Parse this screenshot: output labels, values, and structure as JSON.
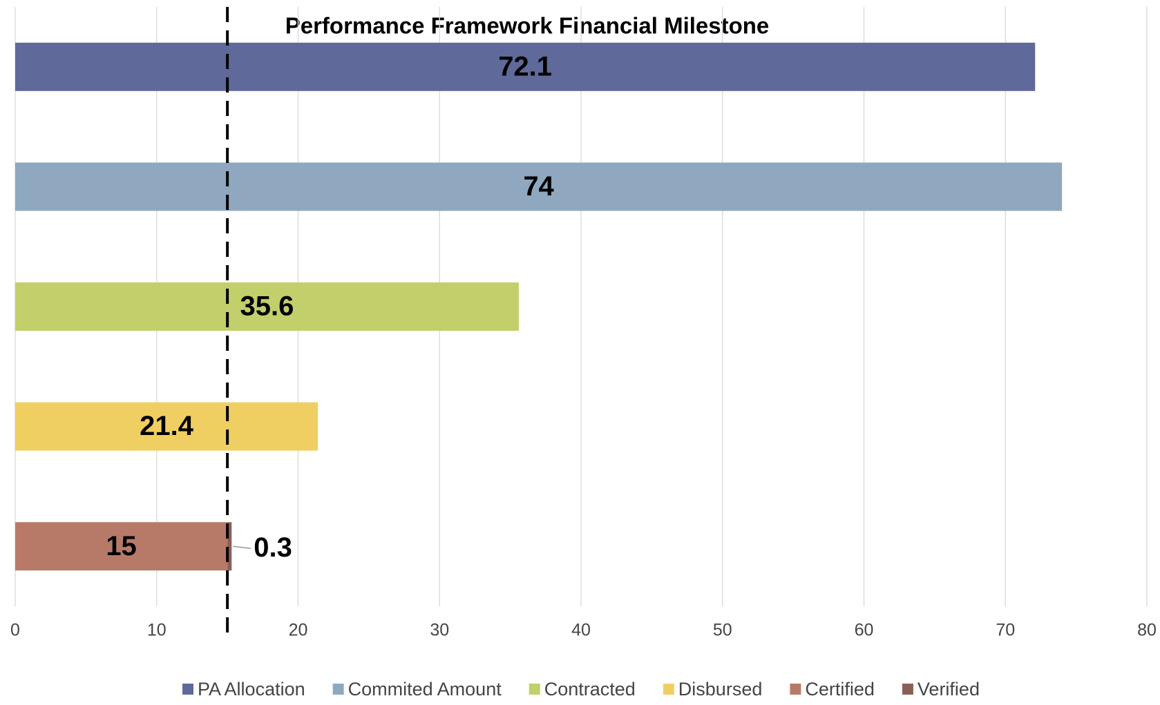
{
  "chart_data": {
    "type": "hbar_stacked",
    "title": "Performance Framework Financial Milestone",
    "categories": [
      null,
      null,
      null,
      null,
      null
    ],
    "series": [
      {
        "name": "PA Allocation",
        "color": "#5f6a9a",
        "values": [
          72.1,
          null,
          null,
          null,
          null
        ]
      },
      {
        "name": "Commited Amount",
        "color": "#8fa8c0",
        "values": [
          null,
          74,
          null,
          null,
          null
        ]
      },
      {
        "name": "Contracted",
        "color": "#c2cf6a",
        "values": [
          null,
          null,
          35.6,
          null,
          null
        ]
      },
      {
        "name": "Disbursed",
        "color": "#f0cf62",
        "values": [
          null,
          null,
          null,
          21.4,
          null
        ]
      },
      {
        "name": "Certified",
        "color": "#b87a68",
        "values": [
          null,
          null,
          null,
          null,
          15
        ]
      },
      {
        "name": "Verified",
        "color": "#8a6055",
        "values": [
          null,
          null,
          null,
          null,
          0.3
        ]
      }
    ],
    "xlim": [
      0,
      80
    ],
    "xticks": [
      0,
      10,
      20,
      30,
      40,
      50,
      60,
      70,
      80
    ],
    "grid": true,
    "reference_line": 15,
    "legend": "bottom"
  }
}
